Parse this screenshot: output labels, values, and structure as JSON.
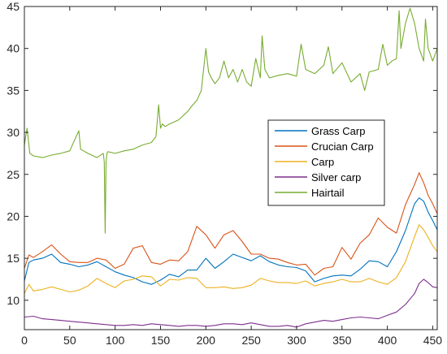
{
  "chart_data": {
    "type": "line",
    "title": "",
    "xlabel": "",
    "ylabel": "",
    "xlim": [
      0,
      455
    ],
    "ylim": [
      6.5,
      45
    ],
    "xticks": [
      0,
      50,
      100,
      150,
      200,
      250,
      300,
      350,
      400,
      450
    ],
    "yticks": [
      10,
      15,
      20,
      25,
      30,
      35,
      40,
      45
    ],
    "grid": false,
    "legend_position": "right",
    "series": [
      {
        "name": "Grass Carp",
        "color": "#0072BD",
        "x": [
          0,
          5,
          10,
          20,
          30,
          40,
          50,
          60,
          70,
          80,
          90,
          100,
          110,
          120,
          130,
          140,
          150,
          160,
          170,
          180,
          190,
          200,
          210,
          220,
          230,
          240,
          250,
          260,
          270,
          280,
          290,
          300,
          310,
          320,
          330,
          340,
          350,
          360,
          370,
          380,
          390,
          400,
          410,
          420,
          430,
          435,
          440,
          445,
          450,
          455
        ],
        "y": [
          12.3,
          14.5,
          14.8,
          15.0,
          15.5,
          14.5,
          14.3,
          14.0,
          14.2,
          14.6,
          14.0,
          13.4,
          13.0,
          12.7,
          12.2,
          11.9,
          12.4,
          13.1,
          12.8,
          13.6,
          13.6,
          15.0,
          13.8,
          14.6,
          15.5,
          15.1,
          14.7,
          15.3,
          14.6,
          14.2,
          14.0,
          13.9,
          13.5,
          12.2,
          12.6,
          12.9,
          13.0,
          12.9,
          13.7,
          14.7,
          14.6,
          14.0,
          15.8,
          18.3,
          21.5,
          22.2,
          21.8,
          20.5,
          19.5,
          18.4
        ]
      },
      {
        "name": "Crucian Carp",
        "color": "#D95319",
        "x": [
          0,
          5,
          10,
          20,
          30,
          40,
          50,
          60,
          70,
          80,
          90,
          100,
          110,
          120,
          130,
          140,
          150,
          160,
          170,
          180,
          190,
          200,
          210,
          220,
          230,
          240,
          250,
          260,
          270,
          280,
          290,
          300,
          310,
          320,
          330,
          340,
          350,
          360,
          370,
          380,
          390,
          400,
          410,
          420,
          430,
          435,
          440,
          445,
          450,
          455
        ],
        "y": [
          13.8,
          15.4,
          15.1,
          15.8,
          16.6,
          15.5,
          14.6,
          14.5,
          14.5,
          15.0,
          14.8,
          13.8,
          14.3,
          16.2,
          16.5,
          14.5,
          14.3,
          14.8,
          14.7,
          15.8,
          18.8,
          17.8,
          16.2,
          17.8,
          18.3,
          17.0,
          15.5,
          15.5,
          15.0,
          14.9,
          14.5,
          14.2,
          14.3,
          13.0,
          13.8,
          14.0,
          16.3,
          14.9,
          16.8,
          17.8,
          19.8,
          18.7,
          18.0,
          21.4,
          23.8,
          25.2,
          24.0,
          22.5,
          21.5,
          20.3
        ]
      },
      {
        "name": "Carp",
        "color": "#EDB120",
        "x": [
          0,
          5,
          10,
          20,
          30,
          40,
          50,
          60,
          70,
          80,
          90,
          100,
          110,
          120,
          130,
          140,
          150,
          160,
          170,
          180,
          190,
          200,
          210,
          220,
          230,
          240,
          250,
          260,
          270,
          280,
          290,
          300,
          310,
          320,
          330,
          340,
          350,
          360,
          370,
          380,
          390,
          400,
          410,
          420,
          430,
          435,
          440,
          445,
          450,
          455
        ],
        "y": [
          10.8,
          11.9,
          11.1,
          11.3,
          11.6,
          11.3,
          11.0,
          11.2,
          11.7,
          12.6,
          12.0,
          11.5,
          12.3,
          12.5,
          12.9,
          12.8,
          11.7,
          12.5,
          12.4,
          12.7,
          12.6,
          11.5,
          11.5,
          11.6,
          11.4,
          11.5,
          11.8,
          12.6,
          12.3,
          12.1,
          12.1,
          12.0,
          12.3,
          11.7,
          12.0,
          12.2,
          12.5,
          12.2,
          12.2,
          12.6,
          12.2,
          11.9,
          12.7,
          14.6,
          17.6,
          19.0,
          18.4,
          17.5,
          16.5,
          15.8
        ]
      },
      {
        "name": "Silver carp",
        "color": "#7E2F8E",
        "x": [
          0,
          10,
          20,
          30,
          40,
          50,
          60,
          70,
          80,
          90,
          100,
          110,
          120,
          130,
          140,
          150,
          160,
          170,
          180,
          190,
          200,
          210,
          220,
          230,
          240,
          250,
          260,
          270,
          280,
          290,
          300,
          310,
          320,
          330,
          340,
          350,
          360,
          370,
          380,
          390,
          400,
          410,
          420,
          430,
          435,
          440,
          445,
          450,
          455
        ],
        "y": [
          8.0,
          8.1,
          7.8,
          7.7,
          7.6,
          7.5,
          7.4,
          7.3,
          7.2,
          7.1,
          7.0,
          7.0,
          7.1,
          7.0,
          7.2,
          7.1,
          7.0,
          6.9,
          7.0,
          7.0,
          6.9,
          7.0,
          7.2,
          7.2,
          7.1,
          7.3,
          7.1,
          6.9,
          6.9,
          7.0,
          6.8,
          7.2,
          7.4,
          7.6,
          7.5,
          7.7,
          7.9,
          8.0,
          7.9,
          7.8,
          8.2,
          8.6,
          9.5,
          10.8,
          12.0,
          12.5,
          12.1,
          11.6,
          11.5
        ]
      },
      {
        "name": "Hairtail",
        "color": "#77AC30",
        "x": [
          0,
          3,
          6,
          10,
          20,
          30,
          40,
          50,
          60,
          62,
          65,
          70,
          80,
          87,
          88,
          89,
          90,
          91,
          92,
          100,
          110,
          120,
          130,
          140,
          145,
          148,
          150,
          152,
          155,
          160,
          170,
          180,
          185,
          190,
          195,
          200,
          203,
          206,
          210,
          215,
          220,
          225,
          230,
          235,
          240,
          245,
          250,
          255,
          260,
          262,
          265,
          270,
          280,
          290,
          300,
          305,
          310,
          320,
          330,
          335,
          340,
          350,
          360,
          370,
          375,
          380,
          390,
          395,
          400,
          405,
          410,
          413,
          415,
          420,
          425,
          430,
          435,
          440,
          442,
          445,
          450,
          455
        ],
        "y": [
          28.5,
          30.5,
          27.5,
          27.2,
          27.0,
          27.3,
          27.5,
          27.8,
          30.2,
          28.0,
          27.8,
          27.5,
          27.0,
          27.5,
          26.5,
          18.0,
          26.5,
          27.5,
          27.7,
          27.5,
          27.8,
          28.0,
          28.5,
          28.8,
          29.5,
          33.3,
          30.5,
          31.0,
          30.7,
          31.0,
          31.5,
          32.5,
          33.2,
          33.8,
          35.0,
          40.0,
          37.2,
          36.5,
          35.8,
          36.5,
          38.5,
          36.5,
          37.5,
          36.0,
          37.5,
          36.0,
          35.5,
          38.8,
          36.5,
          41.5,
          37.5,
          36.5,
          36.8,
          37.0,
          36.7,
          40.5,
          37.5,
          37.0,
          38.0,
          40.2,
          37.0,
          38.3,
          36.0,
          37.0,
          35.0,
          37.2,
          37.5,
          40.5,
          38.0,
          38.5,
          38.8,
          44.5,
          40.0,
          43.0,
          44.8,
          43.0,
          40.0,
          38.5,
          43.5,
          40.0,
          38.5,
          40.0
        ]
      }
    ]
  }
}
